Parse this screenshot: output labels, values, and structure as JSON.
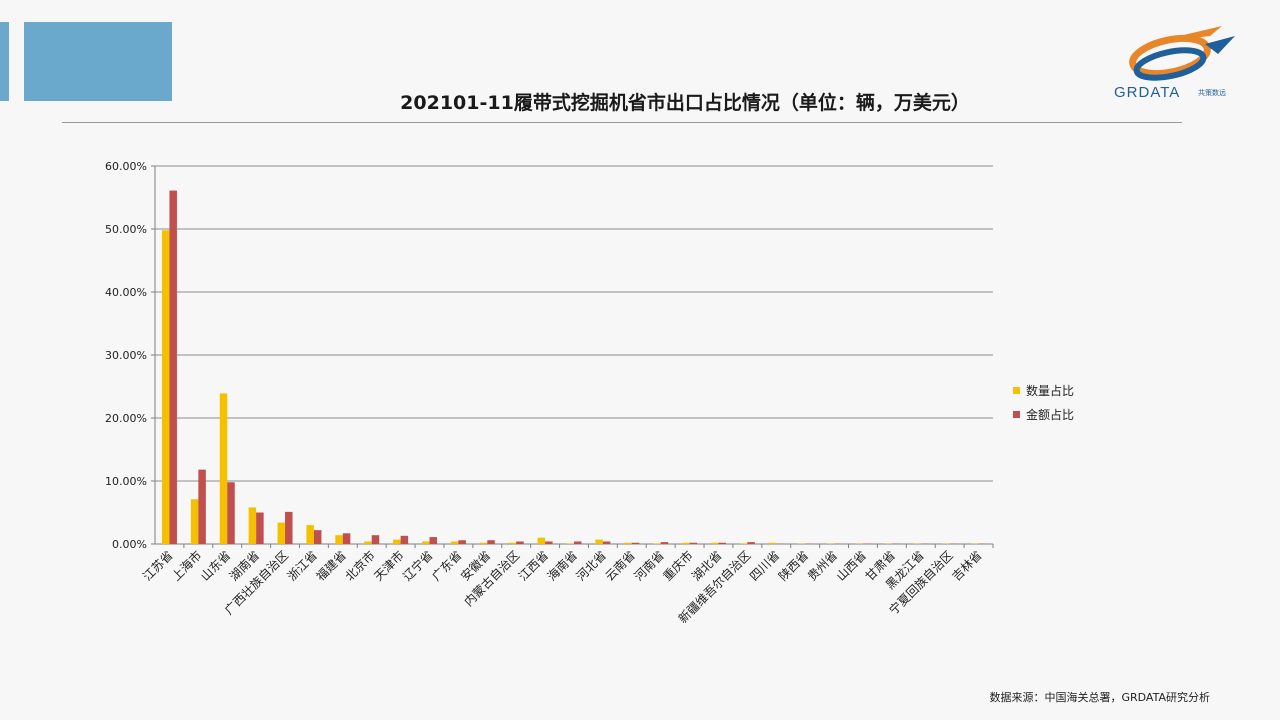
{
  "header": {
    "title": "202101-11履带式挖掘机省市出口占比情况（单位：辆，万美元）"
  },
  "logo": {
    "text": "GRDATA",
    "cn": "共策数远"
  },
  "footer": {
    "source": "数据来源：中国海关总署，GRDATA研究分析"
  },
  "colors": {
    "accent": "#6aa9cc",
    "quantity": "#f5c000",
    "amount": "#c0504d"
  },
  "chart_data": {
    "type": "bar",
    "ylim": [
      0,
      60
    ],
    "yticks": [
      "0.00%",
      "10.00%",
      "20.00%",
      "30.00%",
      "40.00%",
      "50.00%",
      "60.00%"
    ],
    "grid": true,
    "legend_position": "right",
    "categories": [
      "江苏省",
      "上海市",
      "山东省",
      "湖南省",
      "广西壮族自治区",
      "浙江省",
      "福建省",
      "北京市",
      "天津市",
      "辽宁省",
      "广东省",
      "安徽省",
      "内蒙古自治区",
      "江西省",
      "海南省",
      "河北省",
      "云南省",
      "河南省",
      "重庆市",
      "湖北省",
      "新疆维吾尔自治区",
      "四川省",
      "陕西省",
      "贵州省",
      "山西省",
      "甘肃省",
      "黑龙江省",
      "宁夏回族自治区",
      "吉林省"
    ],
    "series": [
      {
        "name": "数量占比",
        "values": [
          49.8,
          7.1,
          23.9,
          5.8,
          3.4,
          3.0,
          1.4,
          0.4,
          0.7,
          0.4,
          0.4,
          0.2,
          0.2,
          1.0,
          0.1,
          0.7,
          0.2,
          0.1,
          0.2,
          0.2,
          0.1,
          0.2,
          0.05,
          0.05,
          0.05,
          0.05,
          0.05,
          0.05,
          0.05
        ]
      },
      {
        "name": "金额占比",
        "values": [
          56.1,
          11.8,
          9.8,
          5.0,
          5.1,
          2.2,
          1.7,
          1.4,
          1.3,
          1.1,
          0.6,
          0.6,
          0.4,
          0.4,
          0.4,
          0.4,
          0.2,
          0.3,
          0.2,
          0.2,
          0.3,
          0.05,
          0.05,
          0.05,
          0.05,
          0.05,
          0.05,
          0.05,
          0.05
        ]
      }
    ]
  }
}
